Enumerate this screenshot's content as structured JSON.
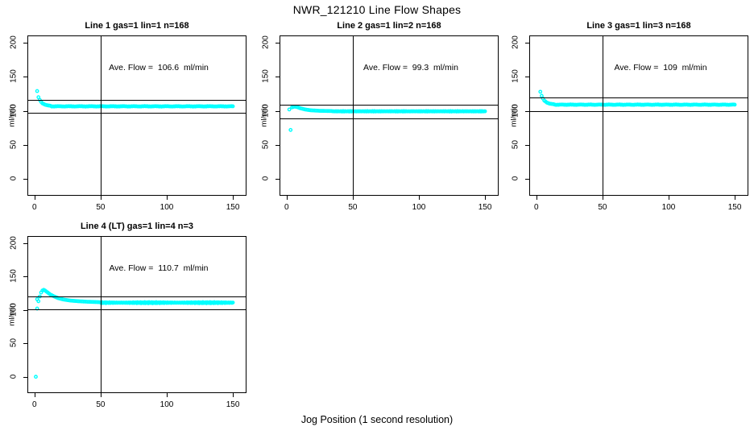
{
  "page": {
    "main_title": "NWR_121210  Line Flow Shapes",
    "x_axis_label": "Jog Position (1 second resolution)",
    "y_axis_label": "ml/min",
    "point_color": "#00FFFF",
    "line_color": "#000000",
    "background_color": "#FFFFFF"
  },
  "chart_data": [
    {
      "type": "scatter",
      "title": "Line 1 gas=1 lin=1 n=168",
      "annotation": "Ave. Flow =  106.6  ml/min",
      "ave_flow_ml_min": 106.6,
      "n": 168,
      "xlabel": "Jog Position (1 second resolution)",
      "ylabel": "ml/min",
      "xlim": [
        0,
        150
      ],
      "ylim": [
        0,
        200
      ],
      "x_ticks": [
        0,
        50,
        100,
        150
      ],
      "y_ticks": [
        0,
        50,
        100,
        150,
        200
      ],
      "vline_x": 50,
      "hlines": [
        116.6,
        96.6
      ],
      "outliers": [
        [
          2,
          129
        ]
      ],
      "transient": [
        [
          3,
          120
        ],
        [
          4,
          116
        ],
        [
          5,
          113
        ],
        [
          6,
          111
        ],
        [
          8,
          109
        ],
        [
          10,
          108
        ],
        [
          13,
          107.2
        ]
      ],
      "steady": {
        "from": 13,
        "to": 150,
        "value": 106.6,
        "noise": 0.35
      }
    },
    {
      "type": "scatter",
      "title": "Line 2 gas=1 lin=2 n=168",
      "annotation": "Ave. Flow =  99.3  ml/min",
      "ave_flow_ml_min": 99.3,
      "n": 168,
      "xlabel": "Jog Position (1 second resolution)",
      "ylabel": "ml/min",
      "xlim": [
        0,
        150
      ],
      "ylim": [
        0,
        200
      ],
      "x_ticks": [
        0,
        50,
        100,
        150
      ],
      "y_ticks": [
        0,
        50,
        100,
        150,
        200
      ],
      "vline_x": 50,
      "hlines": [
        109.3,
        89.3
      ],
      "outliers": [
        [
          3,
          72
        ],
        [
          2,
          102
        ]
      ],
      "transient": [
        [
          4,
          105
        ],
        [
          6,
          106.2
        ],
        [
          8,
          105.5
        ],
        [
          10,
          104
        ],
        [
          14,
          102
        ],
        [
          18,
          100.8
        ],
        [
          25,
          100
        ],
        [
          35,
          99.6
        ]
      ],
      "steady": {
        "from": 35,
        "to": 150,
        "value": 99.3,
        "noise": 0.35
      }
    },
    {
      "type": "scatter",
      "title": "Line 3 gas=1 lin=3 n=168",
      "annotation": "Ave. Flow =  109  ml/min",
      "ave_flow_ml_min": 109,
      "n": 168,
      "xlabel": "Jog Position (1 second resolution)",
      "ylabel": "ml/min",
      "xlim": [
        0,
        150
      ],
      "ylim": [
        0,
        200
      ],
      "x_ticks": [
        0,
        50,
        100,
        150
      ],
      "y_ticks": [
        0,
        50,
        100,
        150,
        200
      ],
      "vline_x": 50,
      "hlines": [
        119,
        99
      ],
      "outliers": [
        [
          3,
          128
        ]
      ],
      "transient": [
        [
          4,
          122
        ],
        [
          5,
          118
        ],
        [
          6,
          115
        ],
        [
          8,
          112
        ],
        [
          10,
          110.5
        ],
        [
          14,
          109.5
        ]
      ],
      "steady": {
        "from": 14,
        "to": 150,
        "value": 109,
        "noise": 0.35
      }
    },
    {
      "type": "scatter",
      "title": "Line 4 (LT) gas=1 lin=4 n=3",
      "annotation": "Ave. Flow =  110.7  ml/min",
      "ave_flow_ml_min": 110.7,
      "n": 3,
      "xlabel": "Jog Position (1 second resolution)",
      "ylabel": "ml/min",
      "xlim": [
        0,
        150
      ],
      "ylim": [
        0,
        200
      ],
      "x_ticks": [
        0,
        50,
        100,
        150
      ],
      "y_ticks": [
        0,
        50,
        100,
        150,
        200
      ],
      "vline_x": 50,
      "hlines": [
        120.7,
        100.7
      ],
      "outliers": [
        [
          1,
          0
        ],
        [
          2,
          102
        ],
        [
          2,
          116
        ]
      ],
      "transient": [
        [
          3,
          113
        ],
        [
          4,
          120
        ],
        [
          5,
          126
        ],
        [
          6,
          129
        ],
        [
          7,
          130
        ],
        [
          8,
          129
        ],
        [
          10,
          126
        ],
        [
          12,
          123
        ],
        [
          15,
          120
        ],
        [
          18,
          117.5
        ],
        [
          22,
          115.5
        ],
        [
          27,
          114
        ],
        [
          33,
          113
        ],
        [
          40,
          112.2
        ],
        [
          50,
          111.5
        ]
      ],
      "steady": {
        "from": 50,
        "to": 150,
        "value": 110.8,
        "noise": 0.9
      }
    }
  ]
}
